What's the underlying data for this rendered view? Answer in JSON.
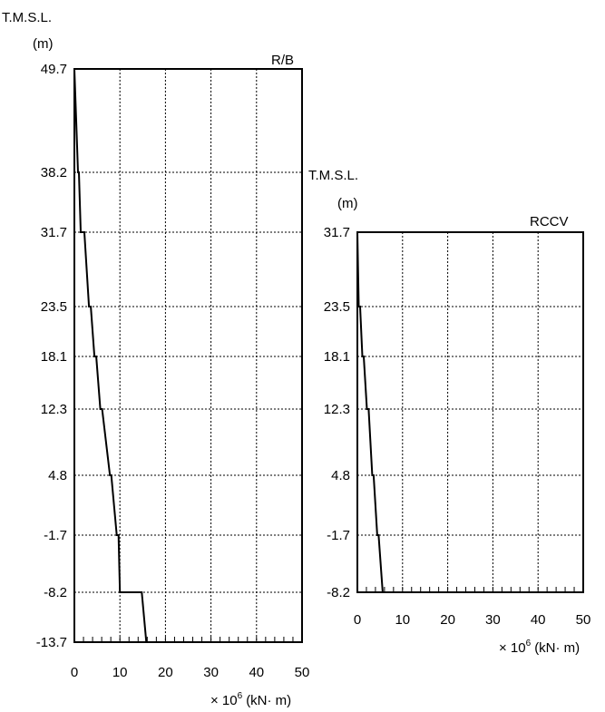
{
  "chart_data": [
    {
      "type": "line",
      "panel": "left",
      "title": "R/B",
      "ylabel": "T.M.S.L.",
      "yunit": "(m)",
      "xunit_prefix": "× 10",
      "xunit_exp": "6",
      "xunit_suffix": "(kN· m)",
      "xlim": [
        0,
        50
      ],
      "xticks": [
        "0",
        "10",
        "20",
        "30",
        "40",
        "50"
      ],
      "yticks": [
        "49.7",
        "38.2",
        "31.7",
        "23.5",
        "18.1",
        "12.3",
        "4.8",
        "-1.7",
        "-8.2",
        "-13.7"
      ],
      "grid": true,
      "series": [
        {
          "points": [
            {
              "x": 0,
              "y": "49.7"
            },
            {
              "x": 0.8,
              "y": "38.2"
            },
            {
              "x": 1.0,
              "y": "38.2"
            },
            {
              "x": 1.4,
              "y": "31.7"
            },
            {
              "x": 2.2,
              "y": "31.7"
            },
            {
              "x": 3.2,
              "y": "23.5"
            },
            {
              "x": 3.6,
              "y": "23.5"
            },
            {
              "x": 4.4,
              "y": "18.1"
            },
            {
              "x": 4.8,
              "y": "18.1"
            },
            {
              "x": 5.7,
              "y": "12.3"
            },
            {
              "x": 6.1,
              "y": "12.3"
            },
            {
              "x": 7.8,
              "y": "4.8"
            },
            {
              "x": 8.1,
              "y": "4.8"
            },
            {
              "x": 9.3,
              "y": "-1.7"
            },
            {
              "x": 9.7,
              "y": "-1.7"
            },
            {
              "x": 10.0,
              "y": "-8.2"
            },
            {
              "x": 14.8,
              "y": "-8.2"
            },
            {
              "x": 15.8,
              "y": "-13.7"
            }
          ]
        }
      ]
    },
    {
      "type": "line",
      "panel": "right",
      "title": "RCCV",
      "ylabel": "T.M.S.L.",
      "yunit": "(m)",
      "xunit_prefix": "× 10",
      "xunit_exp": "6",
      "xunit_suffix": "(kN· m)",
      "xlim": [
        0,
        50
      ],
      "xticks": [
        "0",
        "10",
        "20",
        "30",
        "40",
        "50"
      ],
      "yticks": [
        "31.7",
        "23.5",
        "18.1",
        "12.3",
        "4.8",
        "-1.7",
        "-8.2"
      ],
      "grid": true,
      "series": [
        {
          "points": [
            {
              "x": 0,
              "y": "31.7"
            },
            {
              "x": 0.3,
              "y": "23.5"
            },
            {
              "x": 0.6,
              "y": "23.5"
            },
            {
              "x": 1.1,
              "y": "18.1"
            },
            {
              "x": 1.4,
              "y": "18.1"
            },
            {
              "x": 2.1,
              "y": "12.3"
            },
            {
              "x": 2.5,
              "y": "12.3"
            },
            {
              "x": 3.3,
              "y": "4.8"
            },
            {
              "x": 3.6,
              "y": "4.8"
            },
            {
              "x": 4.4,
              "y": "-1.7"
            },
            {
              "x": 4.7,
              "y": "-1.7"
            },
            {
              "x": 5.6,
              "y": "-8.2"
            }
          ]
        }
      ]
    }
  ]
}
